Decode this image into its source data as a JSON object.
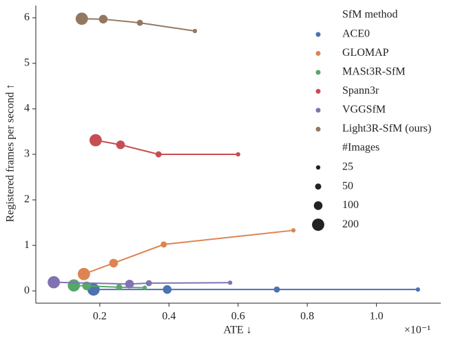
{
  "chart_data": {
    "type": "scatter",
    "xlabel": "ATE ↓",
    "ylabel": "Registered frames per second ↑",
    "x_offset_label": "×10⁻¹",
    "xlim": [
      0.015,
      1.186
    ],
    "ylim": [
      -0.27,
      6.27
    ],
    "xticks": [
      0.2,
      0.4,
      0.6,
      0.8,
      {
        "value": 1,
        "label": "1.0"
      }
    ],
    "yticks": [
      0,
      1,
      2,
      3,
      4,
      5,
      6
    ],
    "legend_title": "SfM method",
    "size_legend_title": "#Images",
    "size_legend": [
      25,
      50,
      100,
      200
    ],
    "series": [
      {
        "name": "ACE0",
        "color": "#4c72b0",
        "x": [
          0.182,
          0.395,
          0.712,
          1.12
        ],
        "values": [
          0.03,
          0.03,
          0.03,
          0.03
        ],
        "sizes": [
          200,
          100,
          50,
          25
        ]
      },
      {
        "name": "GLOMAP",
        "color": "#dd8452",
        "x": [
          0.154,
          0.24,
          0.385,
          0.76
        ],
        "values": [
          0.37,
          0.61,
          1.02,
          1.33
        ],
        "sizes": [
          200,
          100,
          50,
          25
        ]
      },
      {
        "name": "MASt3R-SfM",
        "color": "#55a868",
        "x": [
          0.125,
          0.162,
          0.256,
          0.33
        ],
        "values": [
          0.12,
          0.11,
          0.08,
          0.07
        ],
        "sizes": [
          200,
          100,
          50,
          25
        ]
      },
      {
        "name": "Spann3r",
        "color": "#c44e52",
        "x": [
          0.188,
          0.26,
          0.37,
          0.6
        ],
        "values": [
          3.31,
          3.21,
          3.0,
          3.0
        ],
        "sizes": [
          200,
          100,
          50,
          25
        ]
      },
      {
        "name": "VGGSfM",
        "color": "#8172b3",
        "x": [
          0.067,
          0.286,
          0.342,
          0.577
        ],
        "values": [
          0.19,
          0.15,
          0.17,
          0.18
        ],
        "sizes": [
          200,
          100,
          50,
          25
        ]
      },
      {
        "name": "Light3R-SfM (ours)",
        "color": "#937860",
        "x": [
          0.148,
          0.21,
          0.316,
          0.475
        ],
        "values": [
          5.98,
          5.97,
          5.89,
          5.71
        ],
        "sizes": [
          200,
          100,
          50,
          25
        ]
      }
    ]
  }
}
